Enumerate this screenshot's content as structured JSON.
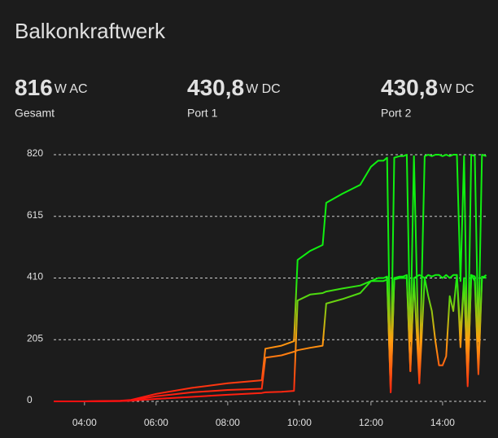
{
  "title": "Balkonkraftwerk",
  "entities": [
    {
      "value": "816",
      "unit": "W AC",
      "name": "Gesamt"
    },
    {
      "value": "430,8",
      "unit": "W DC",
      "name": "Port 1"
    },
    {
      "value": "430,8",
      "unit": "W DC",
      "name": "Port 2"
    }
  ],
  "chart_data": {
    "type": "line",
    "x": [
      3.14,
      4.0,
      5.0,
      5.3,
      6.0,
      7.0,
      8.0,
      8.95,
      9.05,
      9.5,
      9.85,
      9.95,
      10.3,
      10.65,
      10.75,
      11.2,
      11.7,
      12.0,
      12.2,
      12.35,
      12.45,
      12.55,
      12.65,
      12.8,
      12.9,
      13.0,
      13.1,
      13.2,
      13.35,
      13.5,
      13.6,
      13.7,
      13.8,
      13.9,
      14.0,
      14.1,
      14.2,
      14.3,
      14.4,
      14.5,
      14.6,
      14.7,
      14.8,
      14.9,
      15.0,
      15.1,
      15.22
    ],
    "series": [
      {
        "name": "Gesamt",
        "values": [
          0,
          0,
          2,
          5,
          25,
          45,
          60,
          70,
          175,
          185,
          200,
          470,
          500,
          520,
          660,
          690,
          720,
          780,
          800,
          800,
          810,
          60,
          810,
          815,
          815,
          820,
          200,
          815,
          60,
          815,
          820,
          815,
          820,
          820,
          815,
          820,
          815,
          820,
          820,
          400,
          815,
          100,
          820,
          815,
          200,
          820,
          815
        ]
      },
      {
        "name": "Port 1",
        "values": [
          0,
          0,
          1,
          2,
          8,
          15,
          22,
          28,
          30,
          32,
          35,
          335,
          355,
          360,
          365,
          375,
          385,
          400,
          410,
          410,
          415,
          30,
          410,
          415,
          415,
          420,
          100,
          410,
          420,
          410,
          350,
          300,
          200,
          120,
          120,
          150,
          350,
          300,
          420,
          180,
          410,
          60,
          420,
          400,
          90,
          410,
          420
        ]
      },
      {
        "name": "Port 2",
        "values": [
          0,
          0,
          1,
          3,
          17,
          30,
          38,
          42,
          145,
          153,
          165,
          170,
          178,
          185,
          325,
          340,
          360,
          400,
          400,
          400,
          405,
          30,
          405,
          410,
          410,
          410,
          100,
          410,
          60,
          410,
          420,
          415,
          420,
          420,
          410,
          420,
          410,
          420,
          420,
          220,
          410,
          50,
          420,
          415,
          110,
          415,
          410
        ]
      }
    ],
    "xlim": [
      3.14,
      15.23
    ],
    "xticks": [
      {
        "value": 4,
        "label": "04:00"
      },
      {
        "value": 6,
        "label": "06:00"
      },
      {
        "value": 8,
        "label": "08:00"
      },
      {
        "value": 10,
        "label": "10:00"
      },
      {
        "value": 12,
        "label": "12:00"
      },
      {
        "value": 14,
        "label": "14:00"
      }
    ],
    "ylim": [
      0,
      820
    ],
    "yticks": [
      0,
      205,
      410,
      615,
      820
    ],
    "grid": true,
    "color_thresholds": [
      {
        "value": 0,
        "color": "#ff1010"
      },
      {
        "value": 205,
        "color": "#ffa010"
      },
      {
        "value": 410,
        "color": "#10f010"
      }
    ]
  }
}
